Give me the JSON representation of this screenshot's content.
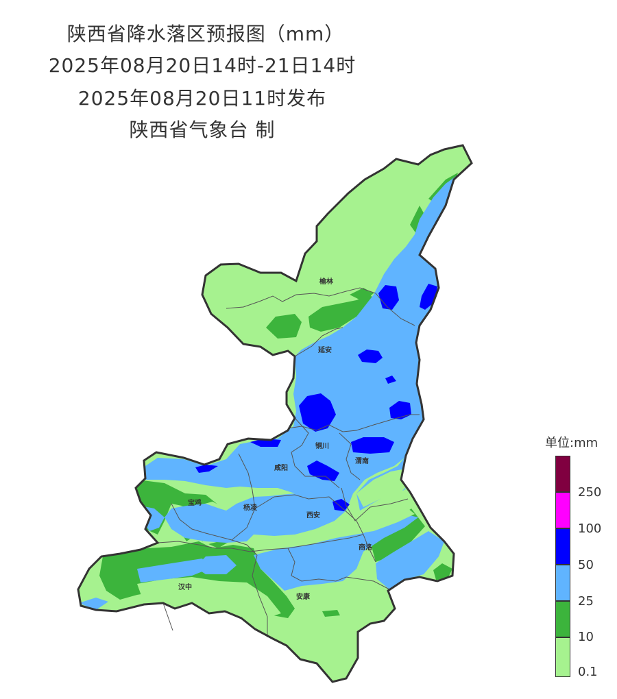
{
  "title": {
    "line1": "陕西省降水落区预报图（mm）",
    "line2": "2025年08月20日14时-21日14时",
    "line3": "2025年08月20日11时发布",
    "line4": "陕西省气象台 制"
  },
  "cities": [
    {
      "name": "榆林"
    },
    {
      "name": "延安"
    },
    {
      "name": "铜川"
    },
    {
      "name": "咸阳"
    },
    {
      "name": "渭南"
    },
    {
      "name": "宝鸡"
    },
    {
      "name": "杨凌"
    },
    {
      "name": "西安"
    },
    {
      "name": "商洛"
    },
    {
      "name": "汉中"
    },
    {
      "name": "安康"
    }
  ],
  "legend": {
    "title": "单位:mm",
    "classes": [
      {
        "label": "",
        "color": "#800040"
      },
      {
        "label": "250",
        "color": "#ff00ff"
      },
      {
        "label": "100",
        "color": "#0000ff"
      },
      {
        "label": "50",
        "color": "#60b4ff"
      },
      {
        "label": "25",
        "color": "#3cb43c"
      },
      {
        "label": "10",
        "color": "#a6f28f"
      },
      {
        "label": "0.1",
        "color": ""
      }
    ],
    "colors": {
      "r01": "#a6f28f",
      "r10": "#3cb43c",
      "r25": "#60b4ff",
      "r50": "#0000ff"
    }
  }
}
